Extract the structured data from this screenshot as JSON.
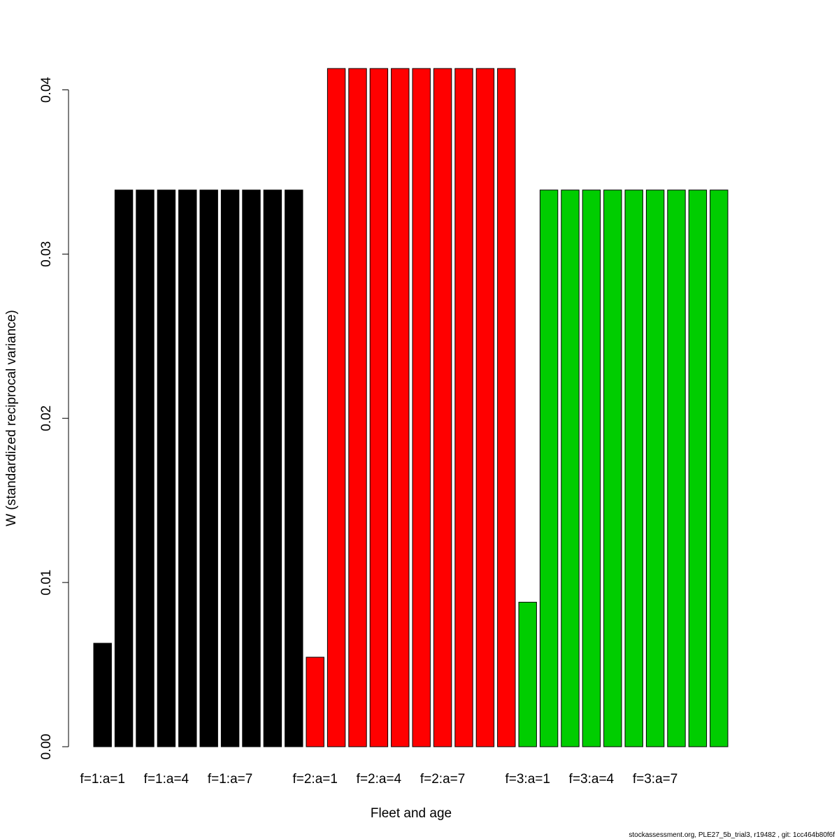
{
  "chart_data": {
    "type": "bar",
    "xlabel": "Fleet and age",
    "ylabel": "W (standardized reciprocal variance)",
    "footnote": "stockassessment.org, PLE27_5b_trial3, r19482 , git: 1cc464b80f6f",
    "categories": [
      "f=1:a=1",
      null,
      null,
      "f=1:a=4",
      null,
      null,
      "f=1:a=7",
      null,
      null,
      null,
      "f=2:a=1",
      null,
      null,
      "f=2:a=4",
      null,
      null,
      "f=2:a=7",
      null,
      null,
      null,
      "f=3:a=1",
      null,
      null,
      "f=3:a=4",
      null,
      null,
      "f=3:a=7",
      null,
      null,
      null
    ],
    "values": [
      0.0063,
      0.0339,
      0.0339,
      0.0339,
      0.0339,
      0.0339,
      0.0339,
      0.0339,
      0.0339,
      0.0339,
      0.00545,
      0.0413,
      0.0413,
      0.0413,
      0.0413,
      0.0413,
      0.0413,
      0.0413,
      0.0413,
      0.0413,
      0.0088,
      0.0339,
      0.0339,
      0.0339,
      0.0339,
      0.0339,
      0.0339,
      0.0339,
      0.0339,
      0.0339
    ],
    "colors": [
      "#000000",
      "#000000",
      "#000000",
      "#000000",
      "#000000",
      "#000000",
      "#000000",
      "#000000",
      "#000000",
      "#000000",
      "#ff0000",
      "#ff0000",
      "#ff0000",
      "#ff0000",
      "#ff0000",
      "#ff0000",
      "#ff0000",
      "#ff0000",
      "#ff0000",
      "#ff0000",
      "#00cd00",
      "#00cd00",
      "#00cd00",
      "#00cd00",
      "#00cd00",
      "#00cd00",
      "#00cd00",
      "#00cd00",
      "#00cd00",
      "#00cd00"
    ],
    "ylim": [
      0,
      0.0413
    ],
    "yticks": [
      {
        "value": 0,
        "label": "0.00"
      },
      0.01,
      0.02,
      0.03,
      0.04
    ]
  }
}
